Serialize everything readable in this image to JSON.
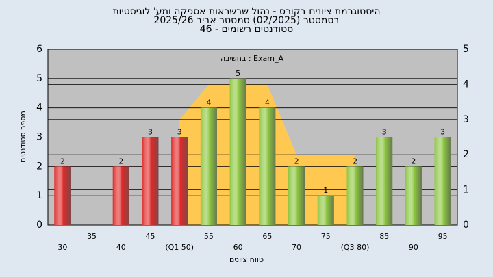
{
  "chart_data": {
    "type": "bar",
    "title": "היסטוגרמת ציונים בקורס - נהול שרשראות אספקה ומע' לוגיסטיות",
    "subtitle": "בסמסטר  (02/2025)  סמסטר אביב 2025/26",
    "subtitle2": "סטודנטים רשומים - 46",
    "annotation": "בחשיבה : Exam_A",
    "x_label": "טווח ציונים",
    "y_label": "מספר סטודנטים",
    "categories": [
      "30",
      "35",
      "40",
      "45",
      "(Q1 50)",
      "55",
      "60",
      "65",
      "70",
      "75",
      "(Q3 80)",
      "85",
      "90",
      "95"
    ],
    "values": [
      2,
      null,
      2,
      3,
      3,
      4,
      5,
      4,
      2,
      1,
      2,
      3,
      2,
      3
    ],
    "colors": [
      "#e02828",
      "#e02828",
      "#e02828",
      "#e02828",
      "#e02828",
      "#8cc63f",
      "#8cc63f",
      "#8cc63f",
      "#8cc63f",
      "#8cc63f",
      "#8cc63f",
      "#8cc63f",
      "#8cc63f",
      "#8cc63f"
    ],
    "area_values": [
      null,
      null,
      null,
      null,
      3,
      4,
      4,
      4,
      2,
      2,
      2,
      null,
      null,
      null
    ],
    "area_color": "#ffc850",
    "ylim": [
      0,
      6
    ],
    "yticks": [
      0,
      1,
      2,
      3,
      4,
      5,
      6
    ],
    "y2lim": [
      0,
      5
    ],
    "y2ticks": [
      0,
      1,
      2,
      3,
      4,
      5
    ],
    "grid": true
  }
}
